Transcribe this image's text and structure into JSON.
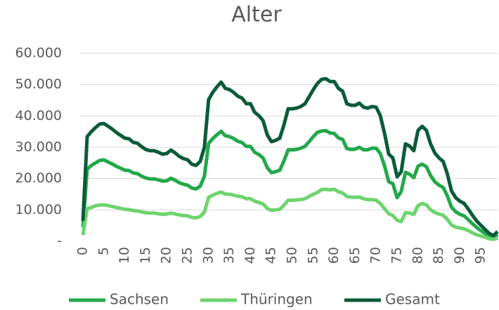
{
  "chart_data": {
    "type": "line",
    "title": "Alter",
    "x": [
      0,
      1,
      2,
      3,
      4,
      5,
      6,
      7,
      8,
      9,
      10,
      11,
      12,
      13,
      14,
      15,
      16,
      17,
      18,
      19,
      20,
      21,
      22,
      23,
      24,
      25,
      26,
      27,
      28,
      29,
      30,
      31,
      32,
      33,
      34,
      35,
      36,
      37,
      38,
      39,
      40,
      41,
      42,
      43,
      44,
      45,
      46,
      47,
      48,
      49,
      50,
      51,
      52,
      53,
      54,
      55,
      56,
      57,
      58,
      59,
      60,
      61,
      62,
      63,
      64,
      65,
      66,
      67,
      68,
      69,
      70,
      71,
      72,
      73,
      74,
      75,
      76,
      77,
      78,
      79,
      80,
      81,
      82,
      83,
      84,
      85,
      86,
      87,
      88,
      89,
      90,
      91,
      92,
      93,
      94,
      95,
      96,
      97,
      98,
      99
    ],
    "xlim": [
      0,
      99
    ],
    "xticks": [
      0,
      5,
      10,
      15,
      20,
      25,
      30,
      35,
      40,
      45,
      50,
      55,
      60,
      65,
      70,
      75,
      80,
      85,
      90,
      95
    ],
    "ylim": [
      0,
      60000
    ],
    "yticks": [
      {
        "value": 0,
        "label": "-"
      },
      {
        "value": 10000,
        "label": "10.000"
      },
      {
        "value": 20000,
        "label": "20.000"
      },
      {
        "value": 30000,
        "label": "30.000"
      },
      {
        "value": 40000,
        "label": "40.000"
      },
      {
        "value": 50000,
        "label": "50.000"
      },
      {
        "value": 60000,
        "label": "60.000"
      }
    ],
    "grid": true,
    "legend": "bottom",
    "series": [
      {
        "name": "Sachsen",
        "color": "#22a84a",
        "values": [
          4500,
          23000,
          24200,
          25000,
          25800,
          26000,
          25300,
          24700,
          23900,
          23300,
          22700,
          22600,
          21800,
          21600,
          20800,
          20200,
          19900,
          19900,
          19600,
          19200,
          19300,
          20100,
          19500,
          18700,
          18200,
          17900,
          17000,
          16700,
          17600,
          20700,
          31200,
          32800,
          34000,
          35100,
          33700,
          33400,
          32800,
          31900,
          31500,
          30300,
          30300,
          28400,
          27700,
          26600,
          23500,
          21900,
          22200,
          22700,
          25700,
          29200,
          29200,
          29300,
          29700,
          30300,
          31800,
          33400,
          34800,
          35200,
          35300,
          34600,
          34400,
          33000,
          32500,
          29600,
          29300,
          29400,
          30000,
          29200,
          29200,
          29700,
          29700,
          28000,
          24100,
          19000,
          18400,
          13900,
          15900,
          22000,
          21400,
          20300,
          24000,
          24600,
          23800,
          21000,
          19000,
          17900,
          17200,
          14500,
          10900,
          9400,
          8600,
          8100,
          6900,
          5600,
          4400,
          3400,
          2500,
          1700,
          1200,
          2100
        ]
      },
      {
        "name": "Thüringen",
        "color": "#6dd46e",
        "values": [
          2000,
          10400,
          10800,
          11300,
          11600,
          11600,
          11400,
          11100,
          10800,
          10500,
          10200,
          10100,
          9800,
          9700,
          9400,
          9100,
          9000,
          9000,
          8800,
          8600,
          8700,
          9000,
          8700,
          8400,
          8200,
          8100,
          7600,
          7500,
          7900,
          9300,
          14000,
          14700,
          15300,
          15700,
          15100,
          15000,
          14700,
          14400,
          14200,
          13600,
          13600,
          12800,
          12400,
          11900,
          10500,
          9900,
          10000,
          10200,
          11500,
          13100,
          13100,
          13200,
          13300,
          13600,
          14300,
          15000,
          15600,
          16500,
          16600,
          16400,
          16600,
          15800,
          15400,
          14300,
          14100,
          14000,
          14100,
          13600,
          13300,
          13300,
          13100,
          12100,
          10400,
          8800,
          8200,
          6700,
          6300,
          9100,
          9000,
          8600,
          11400,
          12100,
          11600,
          10100,
          9200,
          8700,
          8300,
          7000,
          5200,
          4500,
          4200,
          4000,
          3400,
          2700,
          2100,
          1700,
          1300,
          800,
          600,
          1000
        ]
      },
      {
        "name": "Gesamt",
        "color": "#0b5b38",
        "values": [
          6500,
          33400,
          35000,
          36300,
          37400,
          37600,
          36700,
          35800,
          34700,
          33800,
          32900,
          32700,
          31600,
          31300,
          30200,
          29300,
          28900,
          28900,
          28400,
          27800,
          28000,
          29100,
          28200,
          27100,
          26400,
          26000,
          24600,
          24200,
          25500,
          30000,
          45200,
          47500,
          49300,
          50800,
          48800,
          48400,
          47500,
          46300,
          45700,
          43900,
          43900,
          41200,
          40100,
          38500,
          34000,
          31800,
          32200,
          32900,
          37200,
          42300,
          42300,
          42500,
          43000,
          43900,
          46100,
          48400,
          50400,
          51700,
          51900,
          51000,
          51000,
          48800,
          47900,
          43900,
          43400,
          43400,
          44100,
          42800,
          42500,
          43000,
          42800,
          40100,
          34500,
          27800,
          26600,
          20600,
          22200,
          31100,
          30400,
          28900,
          35400,
          36700,
          35400,
          31100,
          28200,
          26600,
          25500,
          21500,
          16100,
          13900,
          12800,
          12100,
          10300,
          8300,
          6500,
          5100,
          3800,
          2500,
          1800,
          3100
        ]
      }
    ]
  }
}
